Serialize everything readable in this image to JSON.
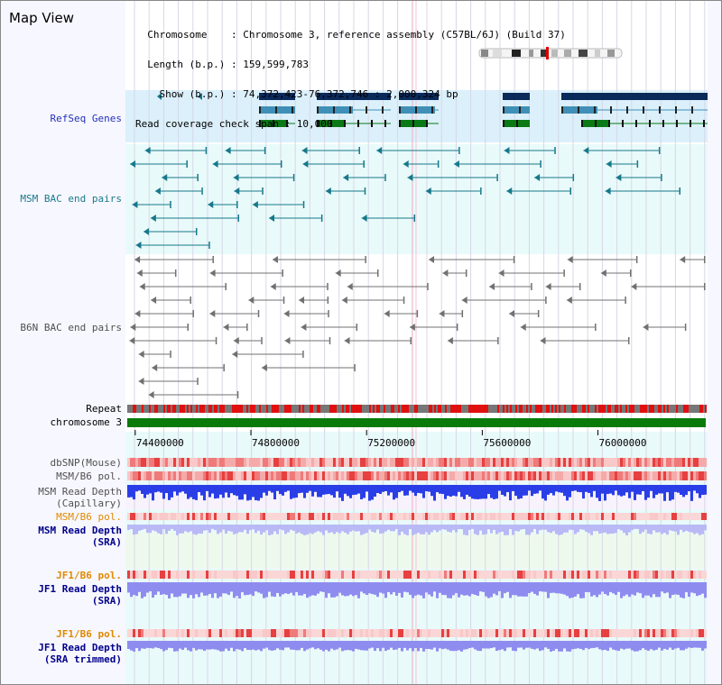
{
  "app_title": "Map View",
  "header": {
    "chromosome_line": "  Chromosome    : Chromosome 3, reference assembly (C57BL/6J) (Build 37)",
    "length_line": "  Length (b.p.) : 159,599,783",
    "show_line": "    Show (b.p.) : 74,372,423-76,372,746 : 2,000,324 bp",
    "coverage_line": "Read coverage check span : 10,000"
  },
  "tracks": {
    "refseq": "RefSeq Genes",
    "msm_bac": "MSM BAC end pairs",
    "b6n_bac": "B6N BAC end pairs",
    "repeat": "Repeat",
    "chromosome": "chromosome 3",
    "dbsnp": "dbSNP(Mouse)",
    "msm_b6_pol": "MSM/B6 pol.",
    "msm_read_depth_cap_1": "MSM Read Depth",
    "msm_read_depth_cap_2": "(Capillary)",
    "msm_b6_pol_2": "MSM/B6 pol.",
    "msm_read_depth_sra_1": "MSM Read Depth",
    "msm_read_depth_sra_2": "(SRA)",
    "jf1_b6_pol": "JF1/B6 pol.",
    "jf1_read_depth_sra_1": "JF1 Read Depth",
    "jf1_read_depth_sra_2": "(SRA)",
    "jf1_b6_pol_2": "JF1/B6 pol.",
    "jf1_read_depth_trim_1": "JF1 Read Depth",
    "jf1_read_depth_trim_2": "(SRA trimmed)"
  },
  "axis": {
    "ticks": [
      "74400000",
      "74800000",
      "75200000",
      "75600000",
      "76000000"
    ],
    "tick_values": [
      74400000,
      74800000,
      75200000,
      75600000,
      76000000
    ],
    "range_start": 74372423,
    "range_end": 76372746
  },
  "colors": {
    "gene_dark": "#0a2a5a",
    "gene_mid": "#3f8fb7",
    "gene_green": "#0a7a16",
    "msm": "#16788a",
    "b6n": "#707070",
    "label_blue": "#2232b8",
    "label_teal": "#1a7a8a",
    "label_orange": "#e08a00",
    "label_navy": "#00008b",
    "chrom_green": "#0a7a0a",
    "depth_blue": "#2a3ee8",
    "depth_violet": "#8f8cf0"
  }
}
